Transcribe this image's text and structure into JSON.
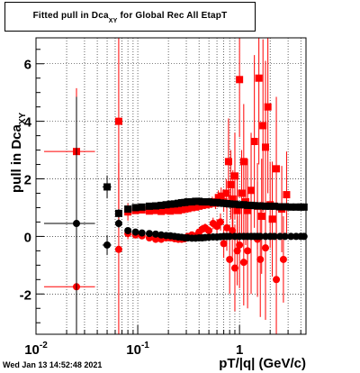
{
  "title": {
    "prefix": "Fitted pull in Dca",
    "subscript": "XY",
    "suffix": " for Global Rec All EtapT"
  },
  "ylabel": {
    "main": "pull in Dca",
    "subscript": "XY"
  },
  "xlabel": "pT/|q| (GeV/c)",
  "timestamp": "Wed Jan 13 14:52:48 2021",
  "colors": {
    "red": "#ff0000",
    "black": "#000000",
    "axis": "#000000",
    "grid": "#000000"
  },
  "chart_data": {
    "type": "scatter",
    "title": "Fitted pull in Dca_XY for Global Rec All EtapT",
    "xlabel": "pT/|q| (GeV/c)",
    "ylabel": "pull in Dca_XY",
    "xscale": "log",
    "xlim": [
      0.01,
      4.5
    ],
    "ylim": [
      -3.4,
      6.9
    ],
    "grid": true,
    "x_ticks": [
      {
        "value": 0.01,
        "base": "10",
        "exp": "-2"
      },
      {
        "value": 0.1,
        "base": "10",
        "exp": "-1"
      },
      {
        "value": 1,
        "base": "1",
        "exp": ""
      }
    ],
    "y_ticks": [
      -2,
      0,
      2,
      4,
      6
    ],
    "series": [
      {
        "color": "#ff0000",
        "marker": "square",
        "points": [
          {
            "x": 0.025,
            "y": 2.95,
            "yerr": 2.2,
            "xerr": 0.013
          },
          {
            "x": 0.065,
            "y": 4.0,
            "yerr": 3.5
          },
          {
            "x": 0.08,
            "y": 0.85,
            "yerr": 0.3
          },
          {
            "x": 0.095,
            "y": 0.9,
            "yerr": 0.12
          },
          {
            "x": 0.11,
            "y": 0.92,
            "yerr": 0.1
          },
          {
            "x": 0.13,
            "y": 0.88,
            "yerr": 0.1
          },
          {
            "x": 0.15,
            "y": 0.9,
            "yerr": 0.1
          },
          {
            "x": 0.17,
            "y": 0.87,
            "yerr": 0.1
          },
          {
            "x": 0.19,
            "y": 0.9,
            "yerr": 0.1
          },
          {
            "x": 0.21,
            "y": 0.88,
            "yerr": 0.1
          },
          {
            "x": 0.23,
            "y": 0.92,
            "yerr": 0.1
          },
          {
            "x": 0.25,
            "y": 0.9,
            "yerr": 0.1
          },
          {
            "x": 0.27,
            "y": 0.93,
            "yerr": 0.1
          },
          {
            "x": 0.29,
            "y": 0.95,
            "yerr": 0.1
          },
          {
            "x": 0.31,
            "y": 0.97,
            "yerr": 0.1
          },
          {
            "x": 0.34,
            "y": 1.0,
            "yerr": 0.1
          },
          {
            "x": 0.37,
            "y": 1.02,
            "yerr": 0.12
          },
          {
            "x": 0.4,
            "y": 1.05,
            "yerr": 0.12
          },
          {
            "x": 0.43,
            "y": 1.08,
            "yerr": 0.12
          },
          {
            "x": 0.46,
            "y": 1.1,
            "yerr": 0.15
          },
          {
            "x": 0.5,
            "y": 1.12,
            "yerr": 0.15
          },
          {
            "x": 0.54,
            "y": 1.2,
            "yerr": 0.18
          },
          {
            "x": 0.58,
            "y": 1.15,
            "yerr": 0.2
          },
          {
            "x": 0.62,
            "y": 1.35,
            "yerr": 0.25
          },
          {
            "x": 0.66,
            "y": 1.4,
            "yerr": 0.3
          },
          {
            "x": 0.7,
            "y": 1.2,
            "yerr": 0.35
          },
          {
            "x": 0.74,
            "y": 1.5,
            "yerr": 0.5
          },
          {
            "x": 0.78,
            "y": 2.6,
            "yerr": 1.5
          },
          {
            "x": 0.82,
            "y": 1.8,
            "yerr": 1.2
          },
          {
            "x": 0.86,
            "y": 1.3,
            "yerr": 1.0
          },
          {
            "x": 0.9,
            "y": 2.1,
            "yerr": 1.5
          },
          {
            "x": 0.95,
            "y": 0.9,
            "yerr": 1.2
          },
          {
            "x": 1.0,
            "y": 5.45,
            "yerr": 2.0
          },
          {
            "x": 1.05,
            "y": 1.5,
            "yerr": 1.5
          },
          {
            "x": 1.1,
            "y": 2.6,
            "yerr": 2.0
          },
          {
            "x": 1.15,
            "y": 1.2,
            "yerr": 1.5
          },
          {
            "x": 1.2,
            "y": 0.9,
            "yerr": 1.8
          },
          {
            "x": 1.3,
            "y": 1.6,
            "yerr": 2.0
          },
          {
            "x": 1.4,
            "y": 3.3,
            "yerr": 3.0
          },
          {
            "x": 1.5,
            "y": 1.05,
            "yerr": 1.5
          },
          {
            "x": 1.55,
            "y": 5.5,
            "yerr": 3.0
          },
          {
            "x": 1.65,
            "y": 0.7,
            "yerr": 2.0
          },
          {
            "x": 1.7,
            "y": 3.85,
            "yerr": 3.0
          },
          {
            "x": 1.8,
            "y": 3.1,
            "yerr": 3.0
          },
          {
            "x": 1.9,
            "y": 4.5,
            "yerr": 3.0
          },
          {
            "x": 2.0,
            "y": 1.1,
            "yerr": 1.5
          },
          {
            "x": 2.1,
            "y": 0.6,
            "yerr": 2.0
          },
          {
            "x": 2.3,
            "y": 2.35,
            "yerr": 2.5
          },
          {
            "x": 2.6,
            "y": 0.95,
            "yerr": 1.5
          },
          {
            "x": 2.9,
            "y": 1.45,
            "yerr": 1.5
          },
          {
            "x": 0.025,
            "y": -1.75,
            "yerr": 1.8,
            "xerr": 0.013
          },
          {
            "x": 0.065,
            "y": -0.45,
            "yerr": 3.0
          },
          {
            "x": 0.08,
            "y": 0.1,
            "yerr": 0.2
          },
          {
            "x": 0.095,
            "y": 0.05,
            "yerr": 0.1
          },
          {
            "x": 0.11,
            "y": 0.02,
            "yerr": 0.1
          },
          {
            "x": 0.13,
            "y": -0.05,
            "yerr": 0.1
          },
          {
            "x": 0.15,
            "y": -0.1,
            "yerr": 0.1
          },
          {
            "x": 0.17,
            "y": -0.1,
            "yerr": 0.1
          },
          {
            "x": 0.19,
            "y": -0.05,
            "yerr": 0.1
          },
          {
            "x": 0.21,
            "y": -0.05,
            "yerr": 0.1
          },
          {
            "x": 0.23,
            "y": -0.08,
            "yerr": 0.1
          },
          {
            "x": 0.25,
            "y": -0.1,
            "yerr": 0.1
          },
          {
            "x": 0.27,
            "y": -0.1,
            "yerr": 0.1
          },
          {
            "x": 0.29,
            "y": -0.08,
            "yerr": 0.1
          },
          {
            "x": 0.31,
            "y": 0.0,
            "yerr": 0.1
          },
          {
            "x": 0.34,
            "y": 0.05,
            "yerr": 0.1
          },
          {
            "x": 0.37,
            "y": 0.02,
            "yerr": 0.1
          },
          {
            "x": 0.4,
            "y": 0.15,
            "yerr": 0.12
          },
          {
            "x": 0.43,
            "y": 0.25,
            "yerr": 0.15
          },
          {
            "x": 0.46,
            "y": 0.3,
            "yerr": 0.15
          },
          {
            "x": 0.5,
            "y": 0.2,
            "yerr": 0.15
          },
          {
            "x": 0.55,
            "y": 0.45,
            "yerr": 0.2
          },
          {
            "x": 0.6,
            "y": 0.35,
            "yerr": 0.25
          },
          {
            "x": 0.65,
            "y": 0.5,
            "yerr": 0.3
          },
          {
            "x": 0.7,
            "y": -0.25,
            "yerr": 0.5
          },
          {
            "x": 0.75,
            "y": 0.3,
            "yerr": 0.8
          },
          {
            "x": 0.8,
            "y": -0.8,
            "yerr": 1.2
          },
          {
            "x": 0.85,
            "y": 0.2,
            "yerr": 1.0
          },
          {
            "x": 0.9,
            "y": -1.1,
            "yerr": 1.5
          },
          {
            "x": 0.95,
            "y": -0.5,
            "yerr": 1.2
          },
          {
            "x": 1.0,
            "y": -0.3,
            "yerr": 1.5
          },
          {
            "x": 1.1,
            "y": -0.9,
            "yerr": 1.5
          },
          {
            "x": 1.2,
            "y": -0.5,
            "yerr": 2.0
          },
          {
            "x": 1.3,
            "y": 0.0,
            "yerr": 2.0
          },
          {
            "x": 1.5,
            "y": -0.1,
            "yerr": 2.0
          },
          {
            "x": 1.6,
            "y": -0.8,
            "yerr": 2.0
          },
          {
            "x": 1.8,
            "y": -0.4,
            "yerr": 2.5
          },
          {
            "x": 2.3,
            "y": -1.5,
            "yerr": 2.0
          },
          {
            "x": 2.7,
            "y": -0.8,
            "yerr": 1.5
          }
        ]
      },
      {
        "color": "#000000",
        "marker": "square",
        "points": [
          {
            "x": 0.05,
            "y": 1.72,
            "yerr": 0.4,
            "xerr": 0.005
          },
          {
            "x": 0.065,
            "y": 0.8,
            "yerr": 0.15
          },
          {
            "x": 0.08,
            "y": 0.95,
            "yerr": 0.1
          },
          {
            "x": 0.095,
            "y": 1.0,
            "yerr": 0.08
          },
          {
            "x": 0.11,
            "y": 1.02,
            "yerr": 0.06
          },
          {
            "x": 0.13,
            "y": 1.05,
            "yerr": 0.05
          },
          {
            "x": 0.15,
            "y": 1.06,
            "yerr": 0.05
          },
          {
            "x": 0.17,
            "y": 1.08,
            "yerr": 0.05
          },
          {
            "x": 0.19,
            "y": 1.1,
            "yerr": 0.05
          },
          {
            "x": 0.21,
            "y": 1.12,
            "yerr": 0.05
          },
          {
            "x": 0.23,
            "y": 1.13,
            "yerr": 0.05
          },
          {
            "x": 0.25,
            "y": 1.15,
            "yerr": 0.05
          },
          {
            "x": 0.27,
            "y": 1.17,
            "yerr": 0.05
          },
          {
            "x": 0.29,
            "y": 1.18,
            "yerr": 0.05
          },
          {
            "x": 0.31,
            "y": 1.2,
            "yerr": 0.05
          },
          {
            "x": 0.34,
            "y": 1.2,
            "yerr": 0.05
          },
          {
            "x": 0.37,
            "y": 1.22,
            "yerr": 0.05
          },
          {
            "x": 0.4,
            "y": 1.22,
            "yerr": 0.05
          },
          {
            "x": 0.43,
            "y": 1.2,
            "yerr": 0.05
          },
          {
            "x": 0.46,
            "y": 1.2,
            "yerr": 0.05
          },
          {
            "x": 0.5,
            "y": 1.2,
            "yerr": 0.05
          },
          {
            "x": 0.55,
            "y": 1.18,
            "yerr": 0.05
          },
          {
            "x": 0.6,
            "y": 1.18,
            "yerr": 0.05
          },
          {
            "x": 0.65,
            "y": 1.16,
            "yerr": 0.05
          },
          {
            "x": 0.7,
            "y": 1.15,
            "yerr": 0.05
          },
          {
            "x": 0.75,
            "y": 1.14,
            "yerr": 0.05
          },
          {
            "x": 0.8,
            "y": 1.13,
            "yerr": 0.05
          },
          {
            "x": 0.85,
            "y": 1.12,
            "yerr": 0.05
          },
          {
            "x": 0.9,
            "y": 1.12,
            "yerr": 0.05
          },
          {
            "x": 1.0,
            "y": 1.1,
            "yerr": 0.05
          },
          {
            "x": 1.1,
            "y": 1.1,
            "yerr": 0.05
          },
          {
            "x": 1.2,
            "y": 1.08,
            "yerr": 0.05
          },
          {
            "x": 1.3,
            "y": 1.08,
            "yerr": 0.05
          },
          {
            "x": 1.4,
            "y": 1.07,
            "yerr": 0.05
          },
          {
            "x": 1.5,
            "y": 1.06,
            "yerr": 0.05
          },
          {
            "x": 1.6,
            "y": 1.06,
            "yerr": 0.05
          },
          {
            "x": 1.8,
            "y": 1.05,
            "yerr": 0.05
          },
          {
            "x": 2.0,
            "y": 1.05,
            "yerr": 0.05
          },
          {
            "x": 2.2,
            "y": 1.05,
            "yerr": 0.05
          },
          {
            "x": 2.5,
            "y": 1.03,
            "yerr": 0.05
          },
          {
            "x": 2.8,
            "y": 1.03,
            "yerr": 0.05
          },
          {
            "x": 3.2,
            "y": 1.02,
            "yerr": 0.05
          },
          {
            "x": 3.6,
            "y": 1.02,
            "yerr": 0.05
          },
          {
            "x": 4.0,
            "y": 1.02,
            "yerr": 0.05
          },
          {
            "x": 4.3,
            "y": 1.02,
            "yerr": 0.05
          },
          {
            "x": 0.025,
            "y": 0.45,
            "yerr": 4.4,
            "xerr": 0.013
          },
          {
            "x": 0.05,
            "y": -0.3,
            "yerr": 0.35,
            "xerr": 0.005
          },
          {
            "x": 0.065,
            "y": 0.45,
            "yerr": 0.15
          },
          {
            "x": 0.08,
            "y": 0.2,
            "yerr": 0.1
          },
          {
            "x": 0.095,
            "y": 0.15,
            "yerr": 0.08
          },
          {
            "x": 0.11,
            "y": 0.12,
            "yerr": 0.06
          },
          {
            "x": 0.13,
            "y": 0.1,
            "yerr": 0.05
          },
          {
            "x": 0.15,
            "y": 0.08,
            "yerr": 0.05
          },
          {
            "x": 0.17,
            "y": 0.05,
            "yerr": 0.05
          },
          {
            "x": 0.19,
            "y": 0.03,
            "yerr": 0.05
          },
          {
            "x": 0.21,
            "y": 0.02,
            "yerr": 0.05
          },
          {
            "x": 0.23,
            "y": 0.0,
            "yerr": 0.05
          },
          {
            "x": 0.25,
            "y": -0.02,
            "yerr": 0.05
          },
          {
            "x": 0.27,
            "y": -0.03,
            "yerr": 0.05
          },
          {
            "x": 0.29,
            "y": -0.05,
            "yerr": 0.05
          },
          {
            "x": 0.31,
            "y": -0.05,
            "yerr": 0.05
          },
          {
            "x": 0.34,
            "y": -0.06,
            "yerr": 0.05
          },
          {
            "x": 0.37,
            "y": -0.06,
            "yerr": 0.05
          },
          {
            "x": 0.4,
            "y": -0.05,
            "yerr": 0.05
          },
          {
            "x": 0.43,
            "y": -0.05,
            "yerr": 0.05
          },
          {
            "x": 0.46,
            "y": -0.04,
            "yerr": 0.05
          },
          {
            "x": 0.5,
            "y": -0.03,
            "yerr": 0.05
          },
          {
            "x": 0.55,
            "y": -0.02,
            "yerr": 0.05
          },
          {
            "x": 0.6,
            "y": -0.02,
            "yerr": 0.05
          },
          {
            "x": 0.65,
            "y": -0.01,
            "yerr": 0.05
          },
          {
            "x": 0.7,
            "y": 0.0,
            "yerr": 0.05
          },
          {
            "x": 0.75,
            "y": 0.0,
            "yerr": 0.05
          },
          {
            "x": 0.8,
            "y": 0.0,
            "yerr": 0.05
          },
          {
            "x": 0.9,
            "y": 0.0,
            "yerr": 0.05
          },
          {
            "x": 1.0,
            "y": 0.0,
            "yerr": 0.05
          },
          {
            "x": 1.1,
            "y": 0.0,
            "yerr": 0.05
          },
          {
            "x": 1.2,
            "y": 0.0,
            "yerr": 0.05
          },
          {
            "x": 1.3,
            "y": 0.0,
            "yerr": 0.05
          },
          {
            "x": 1.4,
            "y": 0.0,
            "yerr": 0.05
          },
          {
            "x": 1.5,
            "y": 0.0,
            "yerr": 0.05
          },
          {
            "x": 1.6,
            "y": 0.0,
            "yerr": 0.05
          },
          {
            "x": 1.8,
            "y": 0.0,
            "yerr": 0.05
          },
          {
            "x": 2.0,
            "y": 0.0,
            "yerr": 0.05
          },
          {
            "x": 2.2,
            "y": 0.0,
            "yerr": 0.05
          },
          {
            "x": 2.5,
            "y": 0.0,
            "yerr": 0.05
          },
          {
            "x": 2.8,
            "y": 0.0,
            "yerr": 0.05
          },
          {
            "x": 3.2,
            "y": 0.0,
            "yerr": 0.05
          },
          {
            "x": 3.6,
            "y": 0.0,
            "yerr": 0.05
          },
          {
            "x": 4.0,
            "y": 0.0,
            "yerr": 0.05
          },
          {
            "x": 4.3,
            "y": 0.0,
            "yerr": 0.05
          }
        ]
      }
    ]
  }
}
